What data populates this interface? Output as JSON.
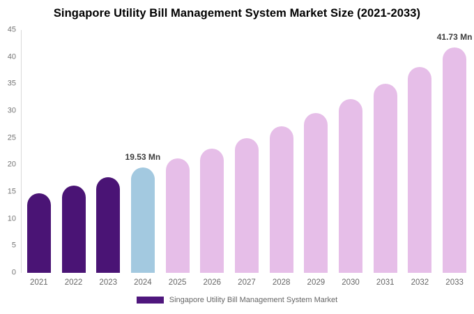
{
  "chart_data": {
    "type": "bar",
    "title": "Singapore Utility Bill Management System Market Size (2021-2033)",
    "categories": [
      "2021",
      "2022",
      "2023",
      "2024",
      "2025",
      "2026",
      "2027",
      "2028",
      "2029",
      "2030",
      "2031",
      "2032",
      "2033"
    ],
    "values": [
      14.8,
      16.2,
      17.7,
      19.53,
      21.2,
      23.0,
      25.0,
      27.2,
      29.6,
      32.2,
      35.0,
      38.1,
      41.73
    ],
    "unit": "Mn",
    "ylim": [
      0,
      45
    ],
    "yticks": [
      0,
      5,
      10,
      15,
      20,
      25,
      30,
      35,
      40,
      45
    ],
    "grid": false,
    "bar_colors": [
      "#4a1475",
      "#4a1475",
      "#4a1475",
      "#a3c9e0",
      "#e6bee8",
      "#e6bee8",
      "#e6bee8",
      "#e6bee8",
      "#e6bee8",
      "#e6bee8",
      "#e6bee8",
      "#e6bee8",
      "#e6bee8"
    ],
    "color_roles": {
      "historical": "#4a1475",
      "base_year": "#a3c9e0",
      "forecast": "#e6bee8",
      "axis_line": "#d9d9d9",
      "tick_text": "#757575",
      "annotation_text": "#3d3d3d"
    },
    "annotations": [
      {
        "category": "2024",
        "text": "19.53 Mn"
      },
      {
        "category": "2033",
        "text": "41.73 Mn"
      }
    ],
    "legend": {
      "position": "bottom",
      "label": "Singapore Utility Bill Management System Market",
      "swatch_color": "#4f177d"
    }
  }
}
